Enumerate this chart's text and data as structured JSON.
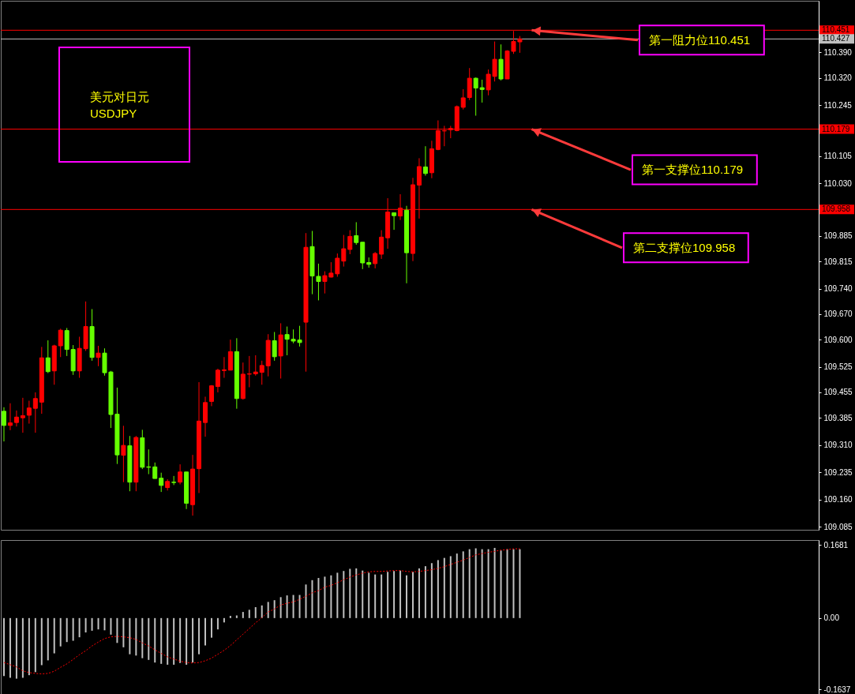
{
  "chart_data": [
    {
      "type": "candlestick",
      "title": "美元对日元",
      "subtitle": "USDJPY",
      "categories": [
        null,
        null,
        null,
        null,
        null,
        null,
        null,
        null,
        null,
        null,
        null,
        null,
        null,
        null,
        null,
        null,
        null,
        null,
        null,
        null,
        null,
        null,
        null,
        null,
        null,
        null,
        null,
        null,
        null,
        null,
        null,
        null,
        null,
        null,
        null,
        null,
        null,
        null,
        null,
        null,
        null,
        null,
        null,
        null,
        null,
        null,
        null,
        null,
        null,
        null,
        null,
        null,
        null,
        null,
        null,
        null,
        null,
        null,
        null,
        null,
        null,
        null,
        null,
        null,
        null,
        null,
        null,
        null,
        null,
        null,
        null,
        null,
        null,
        null,
        null,
        null,
        null,
        null,
        null,
        null,
        null,
        null,
        null,
        null,
        null,
        null,
        null,
        null,
        null,
        null,
        null,
        null,
        null,
        null,
        null,
        null,
        null,
        null,
        null,
        null,
        null,
        null,
        null,
        null,
        null,
        null,
        null,
        null,
        null,
        null,
        null,
        null,
        null,
        null,
        null,
        null,
        null,
        null,
        null,
        null,
        null,
        null,
        null,
        null,
        null,
        null,
        null,
        null,
        null,
        null
      ],
      "ohlc": [
        [
          109.403,
          109.414,
          109.32,
          109.364
        ],
        [
          109.364,
          109.425,
          109.351,
          109.371
        ],
        [
          109.372,
          109.405,
          109.361,
          109.387
        ],
        [
          109.385,
          109.44,
          109.344,
          109.391
        ],
        [
          109.392,
          109.432,
          109.369,
          109.412
        ],
        [
          109.411,
          109.455,
          109.344,
          109.438
        ],
        [
          109.428,
          109.58,
          109.396,
          109.55
        ],
        [
          109.55,
          109.598,
          109.508,
          109.512
        ],
        [
          109.514,
          109.586,
          109.476,
          109.583
        ],
        [
          109.583,
          109.63,
          109.552,
          109.626
        ],
        [
          109.625,
          109.632,
          109.555,
          109.573
        ],
        [
          109.573,
          109.585,
          109.503,
          109.514
        ],
        [
          109.514,
          109.608,
          109.495,
          109.576
        ],
        [
          109.575,
          109.705,
          109.569,
          109.636
        ],
        [
          109.636,
          109.684,
          109.542,
          109.551
        ],
        [
          109.551,
          109.583,
          109.527,
          109.563
        ],
        [
          109.563,
          109.576,
          109.501,
          109.509
        ],
        [
          109.511,
          109.514,
          109.357,
          109.394
        ],
        [
          109.395,
          109.468,
          109.258,
          109.283
        ],
        [
          109.282,
          109.363,
          109.208,
          109.309
        ],
        [
          109.308,
          109.335,
          109.183,
          109.208
        ],
        [
          109.208,
          109.335,
          109.183,
          109.331
        ],
        [
          109.33,
          109.352,
          109.244,
          109.249
        ],
        [
          109.25,
          109.298,
          109.23,
          109.249
        ],
        [
          109.25,
          109.262,
          109.218,
          109.218
        ],
        [
          109.219,
          109.234,
          109.181,
          109.199
        ],
        [
          109.193,
          109.216,
          109.185,
          109.21
        ],
        [
          109.208,
          109.225,
          109.2,
          109.207
        ],
        [
          109.208,
          109.257,
          109.202,
          109.236
        ],
        [
          109.236,
          109.236,
          109.134,
          109.15
        ],
        [
          109.146,
          109.283,
          109.116,
          109.244
        ],
        [
          109.245,
          109.483,
          109.178,
          109.376
        ],
        [
          109.372,
          109.443,
          109.333,
          109.427
        ],
        [
          109.43,
          109.475,
          109.417,
          109.473
        ],
        [
          109.471,
          109.52,
          109.455,
          109.516
        ],
        [
          109.515,
          109.552,
          109.495,
          109.517
        ],
        [
          109.516,
          109.6,
          109.516,
          109.567
        ],
        [
          109.567,
          109.604,
          109.41,
          109.438
        ],
        [
          109.438,
          109.537,
          109.435,
          109.505
        ],
        [
          109.505,
          109.555,
          109.469,
          109.506
        ],
        [
          109.506,
          109.557,
          109.501,
          109.511
        ],
        [
          109.51,
          109.542,
          109.476,
          109.529
        ],
        [
          109.528,
          109.615,
          109.499,
          109.598
        ],
        [
          109.597,
          109.621,
          109.542,
          109.553
        ],
        [
          109.555,
          109.645,
          109.493,
          109.613
        ],
        [
          109.614,
          109.636,
          109.557,
          109.601
        ],
        [
          109.601,
          109.628,
          109.59,
          109.596
        ],
        [
          109.599,
          109.638,
          109.581,
          109.592
        ],
        [
          109.648,
          109.893,
          109.512,
          109.854
        ],
        [
          109.856,
          109.899,
          109.725,
          109.775
        ],
        [
          109.774,
          109.809,
          109.708,
          109.76
        ],
        [
          109.76,
          109.788,
          109.727,
          109.776
        ],
        [
          109.772,
          109.813,
          109.771,
          109.783
        ],
        [
          109.781,
          109.837,
          109.773,
          109.824
        ],
        [
          109.816,
          109.888,
          109.801,
          109.85
        ],
        [
          109.848,
          109.901,
          109.835,
          109.884
        ],
        [
          109.886,
          109.923,
          109.861,
          109.867
        ],
        [
          109.868,
          109.868,
          109.794,
          109.811
        ],
        [
          109.812,
          109.826,
          109.798,
          109.807
        ],
        [
          109.809,
          109.841,
          109.796,
          109.837
        ],
        [
          109.835,
          109.901,
          109.822,
          109.882
        ],
        [
          109.88,
          109.989,
          109.85,
          109.951
        ],
        [
          109.949,
          109.949,
          109.902,
          109.941
        ],
        [
          109.94,
          110.0,
          109.929,
          109.962
        ],
        [
          109.956,
          109.968,
          109.755,
          109.839
        ],
        [
          109.837,
          110.045,
          109.816,
          110.026
        ],
        [
          110.025,
          110.099,
          109.933,
          110.076
        ],
        [
          110.075,
          110.132,
          110.051,
          110.057
        ],
        [
          110.059,
          110.147,
          110.044,
          110.125
        ],
        [
          110.123,
          110.203,
          110.121,
          110.175
        ],
        [
          110.174,
          110.188,
          110.132,
          110.175
        ],
        [
          110.177,
          110.188,
          110.154,
          110.181
        ],
        [
          110.175,
          110.244,
          110.173,
          110.241
        ],
        [
          110.239,
          110.289,
          110.233,
          110.265
        ],
        [
          110.266,
          110.347,
          110.259,
          110.319
        ],
        [
          110.319,
          110.321,
          110.216,
          110.292
        ],
        [
          110.293,
          110.315,
          110.252,
          110.288
        ],
        [
          110.287,
          110.343,
          110.272,
          110.33
        ],
        [
          110.324,
          110.42,
          110.31,
          110.371
        ],
        [
          110.371,
          110.412,
          110.313,
          110.317
        ],
        [
          110.317,
          110.396,
          110.317,
          110.394
        ],
        [
          110.393,
          110.449,
          110.386,
          110.42
        ],
        [
          110.419,
          110.435,
          110.389,
          110.427
        ],
        null,
        null,
        null,
        null,
        null,
        null,
        null,
        null,
        null,
        null,
        null,
        null,
        null,
        null,
        null,
        null,
        null,
        null,
        null,
        null,
        null,
        null,
        null,
        null,
        null,
        null,
        null,
        null,
        null,
        null,
        null,
        null,
        null,
        null,
        null,
        null,
        null,
        null,
        null,
        null,
        null,
        null,
        null,
        null,
        null,
        null,
        null
      ],
      "colors": [
        "#66ff00",
        "#ff0000",
        "#ff0000",
        "#ff0000",
        "#ff0000",
        "#ff0000",
        "#ff0000",
        "#66ff00",
        "#ff0000",
        "#ff0000",
        "#66ff00",
        "#66ff00",
        "#ff0000",
        "#ff0000",
        "#66ff00",
        "#ff0000",
        "#66ff00",
        "#66ff00",
        "#66ff00",
        "#ff0000",
        "#66ff00",
        "#ff0000",
        "#66ff00",
        "#66ff00",
        "#66ff00",
        "#66ff00",
        "#ff0000",
        "#66ff00",
        "#ff0000",
        "#66ff00",
        "#ff0000",
        "#ff0000",
        "#ff0000",
        "#ff0000",
        "#ff0000",
        "#ff0000",
        "#ff0000",
        "#66ff00",
        "#ff0000",
        "#ff0000",
        "#ff0000",
        "#ff0000",
        "#ff0000",
        "#66ff00",
        "#ff0000",
        "#66ff00",
        "#66ff00",
        "#66ff00",
        "#ff0000",
        "#66ff00",
        "#66ff00",
        "#ff0000",
        "#ff0000",
        "#ff0000",
        "#ff0000",
        "#ff0000",
        "#66ff00",
        "#66ff00",
        "#66ff00",
        "#ff0000",
        "#ff0000",
        "#ff0000",
        "#66ff00",
        "#ff0000",
        "#66ff00",
        "#ff0000",
        "#ff0000",
        "#66ff00",
        "#ff0000",
        "#ff0000",
        "#ff0000",
        "#ff0000",
        "#ff0000",
        "#ff0000",
        "#ff0000",
        "#66ff00",
        "#66ff00",
        "#ff0000",
        "#ff0000",
        "#66ff00",
        "#ff0000",
        "#ff0000",
        "#ff0000",
        null,
        null,
        null,
        null,
        null,
        null,
        null,
        null,
        null,
        null,
        null,
        null,
        null,
        null,
        null,
        null,
        null,
        null,
        null,
        null,
        null,
        null,
        null,
        null,
        null,
        null,
        null,
        null,
        null,
        null,
        null,
        null,
        null,
        null,
        null,
        null,
        null,
        null,
        null,
        null,
        null,
        null,
        null,
        null,
        null,
        null,
        null
      ],
      "ylim": [
        109.077,
        110.532
      ],
      "yticks": [
        {
          "value": 110.39,
          "label": "110.390"
        },
        {
          "value": 110.32,
          "label": "110.320"
        },
        110.245,
        110.105,
        {
          "value": 110.03,
          "label": "110.030"
        },
        109.885,
        109.815,
        {
          "value": 109.74,
          "label": "109.740"
        },
        {
          "value": 109.67,
          "label": "109.670"
        },
        {
          "value": 109.6,
          "label": "109.600"
        },
        109.525,
        109.455,
        109.385,
        {
          "value": 109.31,
          "label": "109.310"
        },
        109.235,
        {
          "value": 109.16,
          "label": "109.160"
        },
        109.085
      ],
      "ref_lines": [
        {
          "axis": "y",
          "value": 110.451,
          "label": "110.451",
          "color": "#ff0000"
        },
        {
          "axis": "y",
          "value": 110.427,
          "label": "110.427",
          "color": "#c0c0c0"
        },
        {
          "axis": "y",
          "value": 110.179,
          "label": "110.179",
          "color": "#ff0000"
        },
        {
          "axis": "y",
          "value": 109.958,
          "label": "109.958",
          "color": "#ff0000"
        }
      ],
      "annotations": [
        {
          "text": "第一阻力位110.451",
          "y": 110.451
        },
        {
          "text": "第一支撑位110.179",
          "y": 110.179
        },
        {
          "text": "第二支撑位109.958",
          "y": 109.958
        }
      ],
      "tick_labels": "y"
    },
    {
      "type": "bar",
      "categories": [
        null,
        null,
        null,
        null,
        null,
        null,
        null,
        null,
        null,
        null,
        null,
        null,
        null,
        null,
        null,
        null,
        null,
        null,
        null,
        null,
        null,
        null,
        null,
        null,
        null,
        null,
        null,
        null,
        null,
        null,
        null,
        null,
        null,
        null,
        null,
        null,
        null,
        null,
        null,
        null,
        null,
        null,
        null,
        null,
        null,
        null,
        null,
        null,
        null,
        null,
        null,
        null,
        null,
        null,
        null,
        null,
        null,
        null,
        null,
        null,
        null,
        null,
        null,
        null,
        null,
        null,
        null,
        null,
        null,
        null,
        null,
        null,
        null,
        null,
        null,
        null,
        null,
        null,
        null,
        null,
        null,
        null,
        null,
        null,
        null,
        null,
        null,
        null,
        null,
        null,
        null,
        null,
        null,
        null,
        null,
        null,
        null,
        null,
        null,
        null,
        null,
        null,
        null,
        null,
        null,
        null,
        null,
        null,
        null,
        null,
        null,
        null,
        null,
        null,
        null,
        null,
        null,
        null,
        null,
        null,
        null,
        null,
        null,
        null,
        null,
        null,
        null,
        null,
        null,
        null
      ],
      "series": [
        {
          "type": "bar",
          "color": "#c0c0c0",
          "values": [
            -0.133,
            -0.137,
            -0.139,
            -0.137,
            -0.131,
            -0.124,
            -0.108,
            -0.097,
            -0.081,
            -0.065,
            -0.055,
            -0.052,
            -0.044,
            -0.033,
            -0.029,
            -0.026,
            -0.028,
            -0.038,
            -0.057,
            -0.067,
            -0.083,
            -0.086,
            -0.092,
            -0.096,
            -0.102,
            -0.105,
            -0.107,
            -0.107,
            -0.103,
            -0.107,
            -0.102,
            -0.083,
            -0.063,
            -0.045,
            -0.026,
            -0.01,
            0.005,
            0.006,
            0.014,
            0.019,
            0.025,
            0.029,
            0.037,
            0.041,
            0.048,
            0.052,
            0.053,
            0.053,
            0.077,
            0.087,
            0.092,
            0.095,
            0.098,
            0.104,
            0.108,
            0.113,
            0.114,
            0.109,
            0.104,
            0.1,
            0.1,
            0.106,
            0.108,
            0.109,
            0.098,
            0.106,
            0.114,
            0.119,
            0.126,
            0.133,
            0.138,
            0.142,
            0.148,
            0.153,
            0.158,
            0.16,
            0.158,
            0.158,
            0.161,
            0.155,
            0.158,
            0.158,
            0.158,
            null,
            null,
            null,
            null,
            null,
            null,
            null,
            null,
            null,
            null,
            null,
            null,
            null,
            null,
            null,
            null,
            null,
            null,
            null,
            null,
            null,
            null,
            null,
            null,
            null,
            null,
            null,
            null,
            null,
            null,
            null,
            null,
            null,
            null,
            null,
            null,
            null,
            null,
            null,
            null,
            null,
            null,
            null,
            null,
            null,
            null,
            null
          ]
        },
        {
          "type": "line",
          "color": "#ff0000",
          "line_style": "dotted",
          "values": [
            -0.102,
            -0.107,
            -0.112,
            -0.121,
            -0.125,
            -0.127,
            -0.128,
            -0.127,
            -0.122,
            -0.113,
            -0.105,
            -0.095,
            -0.084,
            -0.075,
            -0.064,
            -0.055,
            -0.047,
            -0.043,
            -0.042,
            -0.043,
            -0.045,
            -0.049,
            -0.057,
            -0.064,
            -0.073,
            -0.081,
            -0.089,
            -0.094,
            -0.099,
            -0.102,
            -0.103,
            -0.102,
            -0.098,
            -0.092,
            -0.083,
            -0.074,
            -0.063,
            -0.05,
            -0.037,
            -0.024,
            -0.011,
            0.001,
            0.014,
            0.021,
            0.03,
            0.034,
            0.037,
            0.043,
            0.05,
            0.058,
            0.063,
            0.071,
            0.075,
            0.081,
            0.088,
            0.094,
            0.099,
            0.103,
            0.106,
            0.107,
            0.107,
            0.108,
            0.109,
            0.109,
            0.107,
            0.106,
            0.107,
            0.109,
            0.111,
            0.114,
            0.118,
            0.123,
            0.128,
            0.133,
            0.139,
            0.145,
            0.148,
            0.151,
            0.153,
            0.156,
            0.157,
            0.159,
            0.159,
            null,
            null,
            null,
            null,
            null,
            null,
            null,
            null,
            null,
            null,
            null,
            null,
            null,
            null,
            null,
            null,
            null,
            null,
            null,
            null,
            null,
            null,
            null,
            null,
            null,
            null,
            null,
            null,
            null,
            null,
            null,
            null,
            null,
            null,
            null,
            null,
            null,
            null,
            null,
            null,
            null,
            null,
            null,
            null,
            null,
            null,
            null
          ]
        }
      ],
      "ylim": [
        -0.176,
        0.179
      ],
      "yticks": [
        0.1681,
        {
          "value": 0,
          "label": "0.00"
        },
        -0.1637
      ],
      "tick_labels": "y"
    }
  ]
}
